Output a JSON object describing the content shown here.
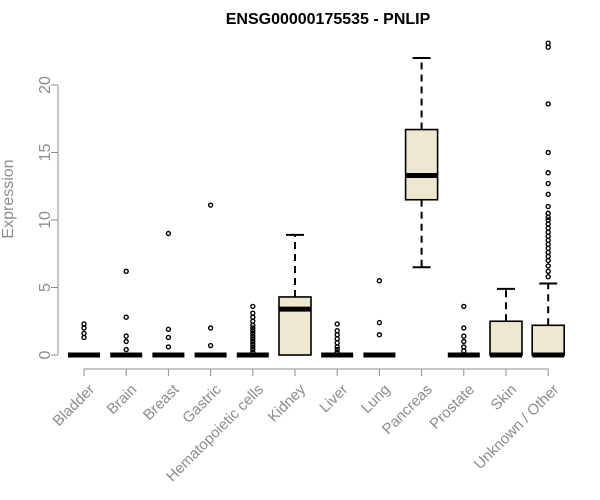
{
  "chart_data": {
    "type": "box",
    "title": "ENSG00000175535 - PNLIP",
    "xlabel": "",
    "ylabel": "Expression",
    "ylim": [
      0,
      23.5
    ],
    "yticks": [
      0,
      5,
      10,
      15,
      20
    ],
    "colors": {
      "box_fill": "#efe8d1",
      "stroke": "#000000",
      "axis_text": "#8c8c8c"
    },
    "categories": [
      "Bladder",
      "Brain",
      "Breast",
      "Gastric",
      "Hematopoietic cells",
      "Kidney",
      "Liver",
      "Lung",
      "Pancreas",
      "Prostate",
      "Skin",
      "Unknown / Other"
    ],
    "boxes": [
      {
        "q1": 0,
        "median": 0,
        "q3": 0,
        "whisker_low": 0,
        "whisker_high": 0,
        "outliers": [
          1.3,
          1.6,
          2.0,
          2.3
        ]
      },
      {
        "q1": 0,
        "median": 0,
        "q3": 0,
        "whisker_low": 0,
        "whisker_high": 0,
        "outliers": [
          0.4,
          1.0,
          1.4,
          2.8,
          6.2
        ]
      },
      {
        "q1": 0,
        "median": 0,
        "q3": 0,
        "whisker_low": 0,
        "whisker_high": 0,
        "outliers": [
          0.6,
          1.3,
          1.9,
          9.0
        ]
      },
      {
        "q1": 0,
        "median": 0,
        "q3": 0,
        "whisker_low": 0,
        "whisker_high": 0,
        "outliers": [
          0.7,
          2.0,
          11.1
        ]
      },
      {
        "q1": 0,
        "median": 0,
        "q3": 0,
        "whisker_low": 0,
        "whisker_high": 0,
        "outliers": [
          0.2,
          0.4,
          0.6,
          0.8,
          1.0,
          1.2,
          1.4,
          1.6,
          1.8,
          2.0,
          2.2,
          2.5,
          2.8,
          3.1,
          3.6
        ]
      },
      {
        "q1": 0,
        "median": 3.4,
        "q3": 4.3,
        "whisker_low": 0,
        "whisker_high": 8.9,
        "outliers": []
      },
      {
        "q1": 0,
        "median": 0,
        "q3": 0,
        "whisker_low": 0,
        "whisker_high": 0,
        "outliers": [
          0.2,
          0.4,
          0.6,
          0.9,
          1.2,
          1.5,
          1.8,
          2.3
        ]
      },
      {
        "q1": 0,
        "median": 0,
        "q3": 0,
        "whisker_low": 0,
        "whisker_high": 0,
        "outliers": [
          1.5,
          2.4,
          5.5
        ]
      },
      {
        "q1": 11.5,
        "median": 13.3,
        "q3": 16.7,
        "whisker_low": 6.5,
        "whisker_high": 22.0,
        "outliers": []
      },
      {
        "q1": 0,
        "median": 0,
        "q3": 0,
        "whisker_low": 0,
        "whisker_high": 0,
        "outliers": [
          0.3,
          0.6,
          1.0,
          1.4,
          2.0,
          3.6
        ]
      },
      {
        "q1": 0,
        "median": 0,
        "q3": 2.5,
        "whisker_low": 0,
        "whisker_high": 4.9,
        "outliers": []
      },
      {
        "q1": 0,
        "median": 0,
        "q3": 2.2,
        "whisker_low": 0,
        "whisker_high": 5.3,
        "outliers": [
          5.8,
          6.2,
          6.6,
          7.0,
          7.3,
          7.6,
          7.9,
          8.2,
          8.5,
          8.8,
          9.1,
          9.4,
          9.7,
          10.0,
          10.2,
          10.5,
          11.0,
          11.9,
          12.7,
          13.5,
          15.0,
          18.6,
          22.8,
          23.1
        ]
      }
    ]
  }
}
